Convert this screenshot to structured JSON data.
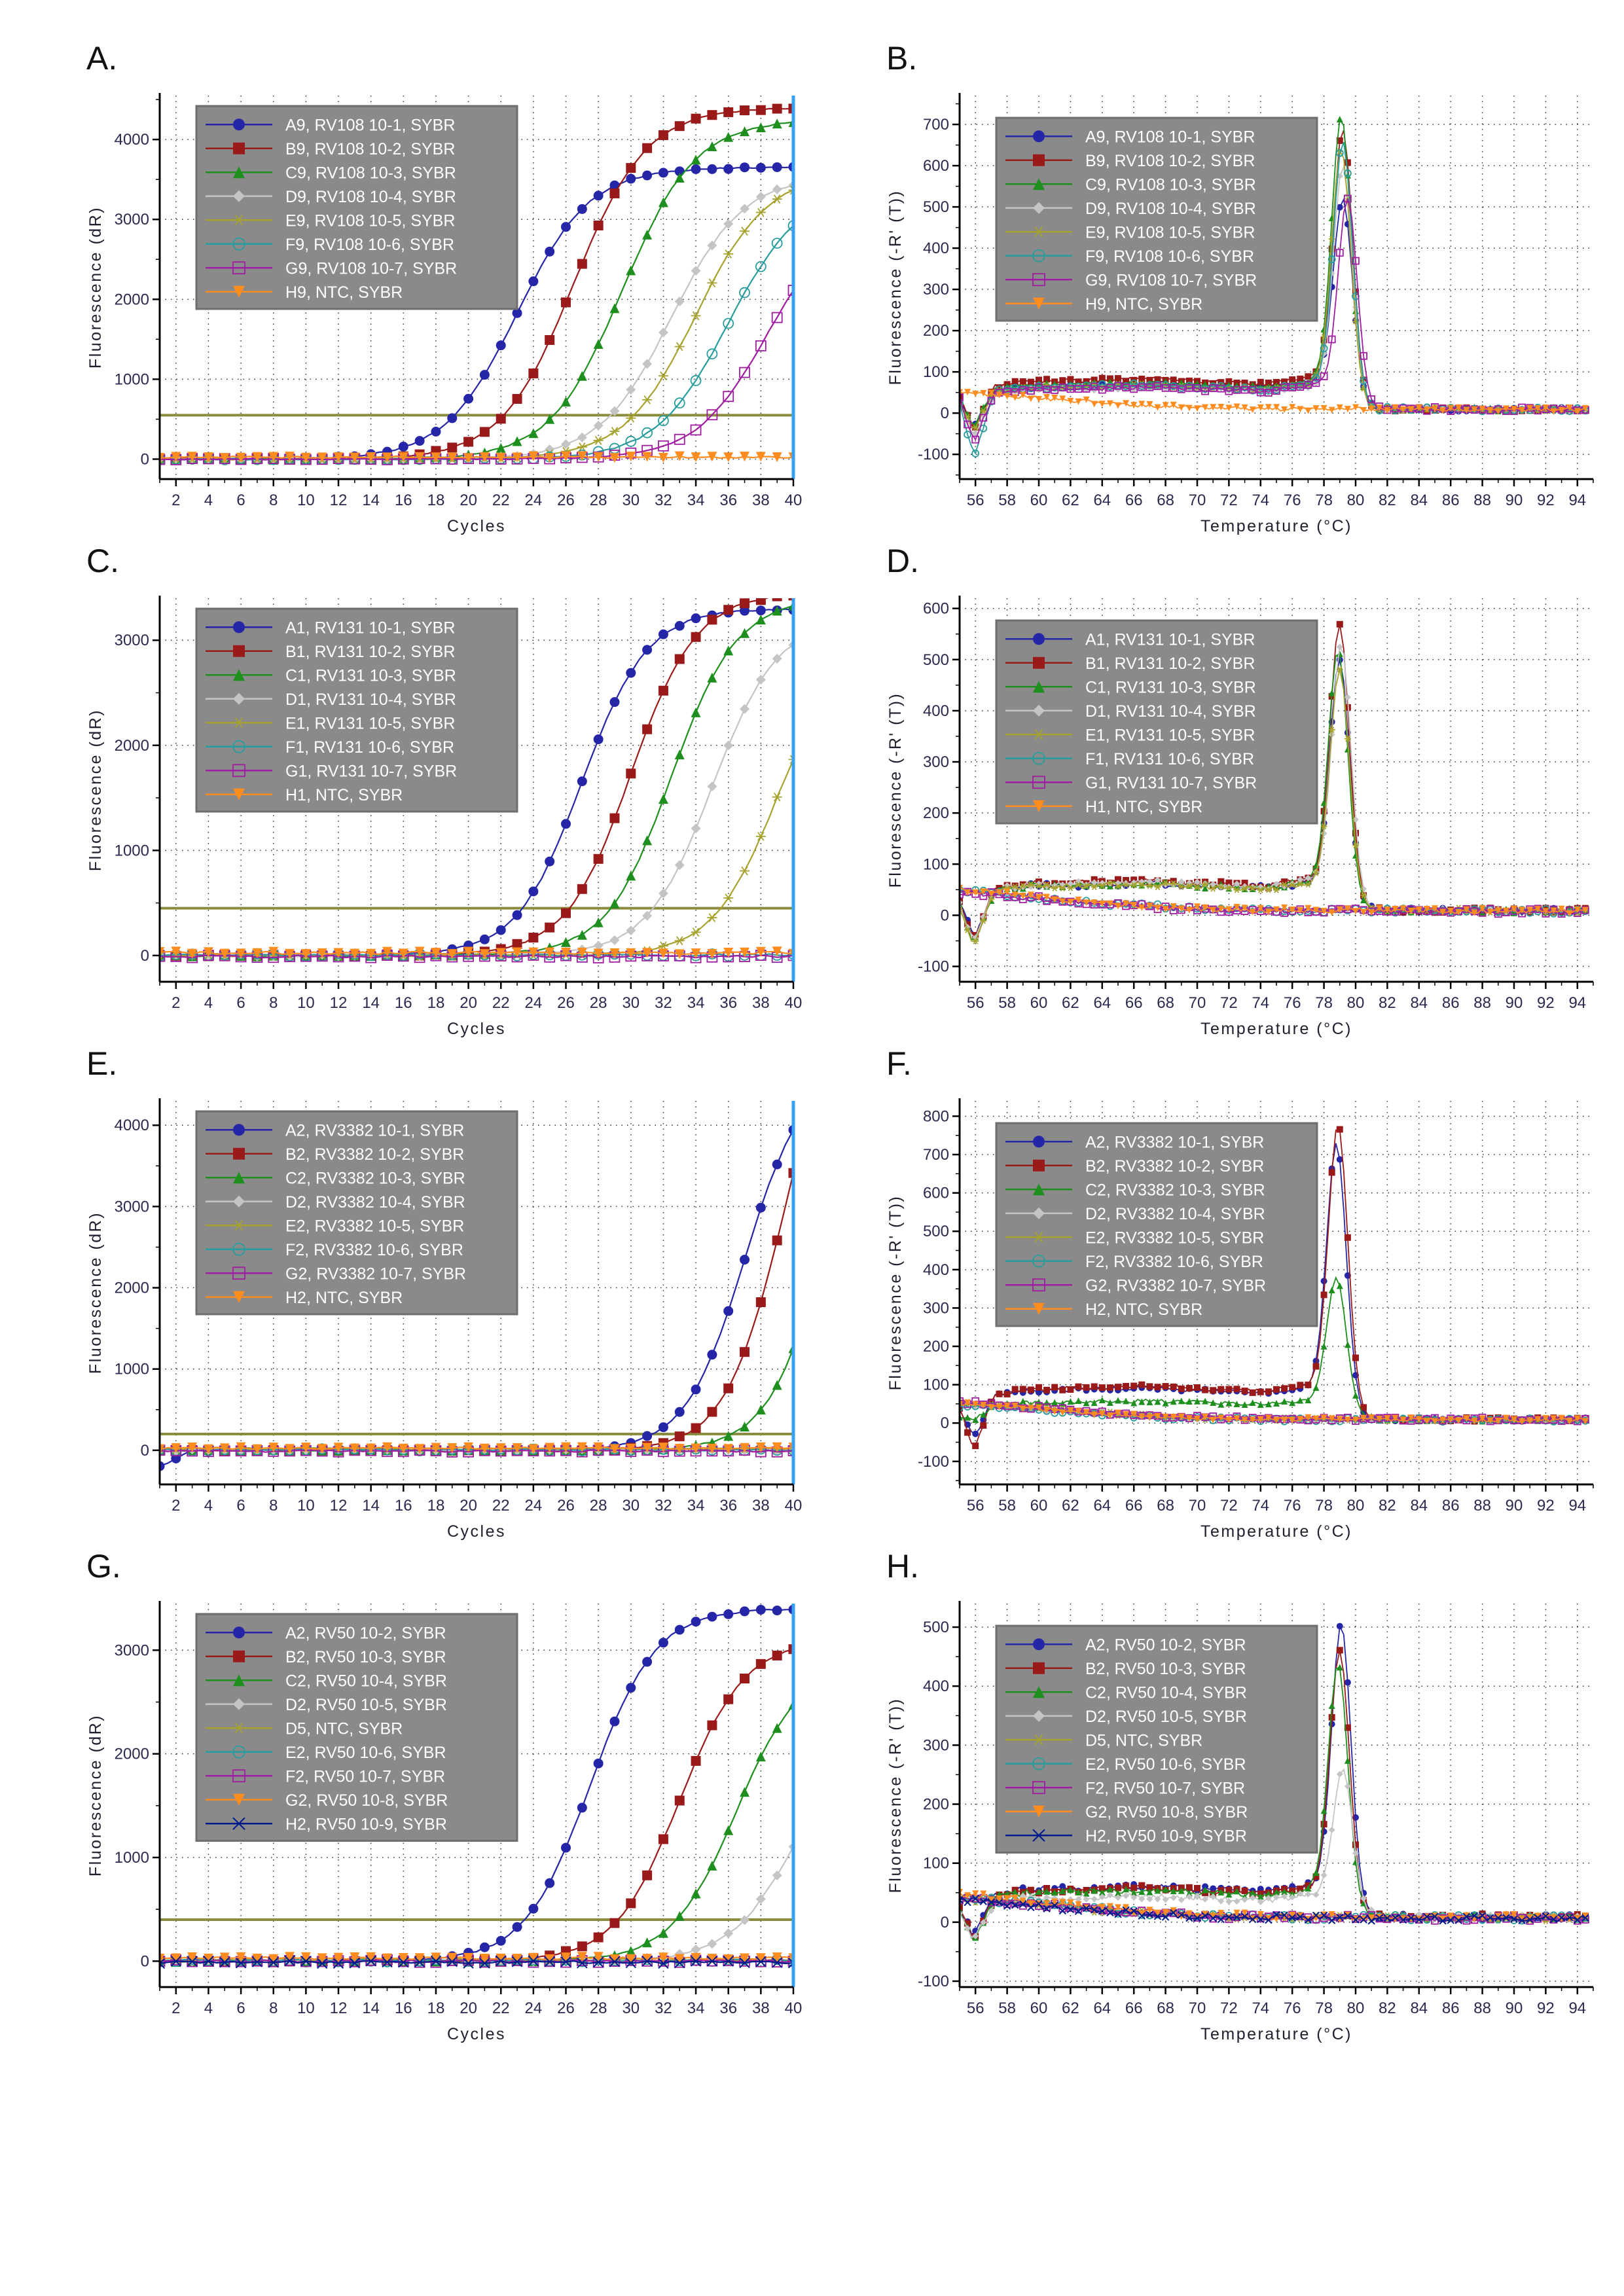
{
  "figure": {
    "panel_letters": [
      "A.",
      "B.",
      "C.",
      "D.",
      "E.",
      "F.",
      "G.",
      "H."
    ]
  },
  "colors": {
    "threshold": "#8b8b3d",
    "right_edge_line": "#36a0f5",
    "legend_bg": "#8a8a8a",
    "legend_border": "#6f6f6f",
    "axis": "#000000",
    "tick_text": "#2a2a4e"
  },
  "chart_data": [
    {
      "letter": "A.",
      "type": "line",
      "subtype": "amplification",
      "xlabel": "Cycles",
      "ylabel": "Fluorescence (dR)",
      "x_min": 1,
      "x_max": 40,
      "x_major": 2,
      "y_min": -250,
      "y_max": 4550,
      "y_ticks": [
        0,
        1000,
        2000,
        3000,
        4000
      ],
      "y_minor": 500,
      "threshold": 550,
      "k": 0.45,
      "series": [
        {
          "label": "A9, RV108 10-1, SYBR",
          "color": "#2525a8",
          "marker": "circle",
          "mid": 23.0,
          "plateau": 3650
        },
        {
          "label": "B9, RV108 10-2, SYBR",
          "color": "#9a1a1a",
          "marker": "square",
          "mid": 26.5,
          "plateau": 4400
        },
        {
          "label": "C9, RV108 10-3, SYBR",
          "color": "#1e8f1e",
          "marker": "triangle",
          "mid": 29.5,
          "plateau": 4250
        },
        {
          "label": "D9, RV108 10-4, SYBR",
          "color": "#c4c4c4",
          "marker": "diamond",
          "mid": 32.5,
          "plateau": 3550
        },
        {
          "label": "E9, RV108 10-5, SYBR",
          "color": "#a7a22e",
          "marker": "star",
          "mid": 34.0,
          "plateau": 3600
        },
        {
          "label": "F9, RV108 10-6, SYBR",
          "color": "#279c9c",
          "marker": "circle-open",
          "mid": 36.0,
          "plateau": 3400
        },
        {
          "label": "G9, RV108 10-7, SYBR",
          "color": "#a01ca0",
          "marker": "square-open",
          "mid": 38.5,
          "plateau": 3200
        },
        {
          "label": "H9, NTC, SYBR",
          "color": "#ff8c1f",
          "marker": "triangle-down",
          "flat": 25
        }
      ]
    },
    {
      "letter": "B.",
      "type": "line",
      "subtype": "melt",
      "xlabel": "Temperature (°C)",
      "ylabel": "Fluorescence (-R' (T))",
      "x_min": 55,
      "x_max": 95,
      "x_major": 2,
      "y_min": -160,
      "y_max": 770,
      "y_ticks": [
        -100,
        0,
        100,
        200,
        300,
        400,
        500,
        600,
        700
      ],
      "y_minor": 50,
      "series": [
        {
          "label": "A9, RV108 10-1, SYBR",
          "color": "#2525a8",
          "marker": "circle",
          "start": 30,
          "dip": -35,
          "shoulder": 70,
          "peak": 520,
          "tm": 79.2
        },
        {
          "label": "B9, RV108 10-2, SYBR",
          "color": "#9a1a1a",
          "marker": "square",
          "start": 40,
          "dip": -45,
          "shoulder": 80,
          "peak": 690,
          "tm": 79.2
        },
        {
          "label": "C9, RV108 10-3, SYBR",
          "color": "#1e8f1e",
          "marker": "triangle",
          "start": 25,
          "dip": -30,
          "shoulder": 70,
          "peak": 720,
          "tm": 79.1
        },
        {
          "label": "D9, RV108 10-4, SYBR",
          "color": "#c4c4c4",
          "marker": "diamond",
          "start": 20,
          "dip": -55,
          "shoulder": 60,
          "peak": 600,
          "tm": 79.2
        },
        {
          "label": "E9, RV108 10-5, SYBR",
          "color": "#a7a22e",
          "marker": "star",
          "start": 20,
          "dip": -40,
          "shoulder": 65,
          "peak": 640,
          "tm": 79.1
        },
        {
          "label": "F9, RV108 10-6, SYBR",
          "color": "#279c9c",
          "marker": "circle-open",
          "start": 25,
          "dip": -105,
          "shoulder": 65,
          "peak": 660,
          "tm": 79.2
        },
        {
          "label": "G9, RV108 10-7, SYBR",
          "color": "#a01ca0",
          "marker": "square-open",
          "start": 35,
          "dip": -70,
          "shoulder": 60,
          "peak": 520,
          "tm": 79.5
        },
        {
          "label": "H9, NTC, SYBR",
          "color": "#ff8c1f",
          "marker": "triangle-down",
          "flat": true,
          "start": 50
        }
      ]
    },
    {
      "letter": "C.",
      "type": "line",
      "subtype": "amplification",
      "xlabel": "Cycles",
      "ylabel": "Fluorescence (dR)",
      "x_min": 1,
      "x_max": 40,
      "x_major": 2,
      "y_min": -250,
      "y_max": 3400,
      "y_ticks": [
        0,
        1000,
        2000,
        3000
      ],
      "y_minor": 500,
      "threshold": 450,
      "k": 0.5,
      "series": [
        {
          "label": "A1, RV131 10-1, SYBR",
          "color": "#2525a8",
          "marker": "circle",
          "mid": 27.0,
          "plateau": 3300
        },
        {
          "label": "B1, RV131 10-2, SYBR",
          "color": "#9a1a1a",
          "marker": "square",
          "mid": 30.0,
          "plateau": 3450
        },
        {
          "label": "C1, RV131 10-3, SYBR",
          "color": "#1e8f1e",
          "marker": "triangle",
          "mid": 32.5,
          "plateau": 3400
        },
        {
          "label": "D1, RV131 10-4, SYBR",
          "color": "#c4c4c4",
          "marker": "diamond",
          "mid": 35.0,
          "plateau": 3200
        },
        {
          "label": "E1, RV131 10-5, SYBR",
          "color": "#a7a22e",
          "marker": "star",
          "mid": 39.0,
          "plateau": 3000
        },
        {
          "label": "F1, RV131 10-6, SYBR",
          "color": "#279c9c",
          "marker": "circle-open",
          "flat": 5
        },
        {
          "label": "G1, RV131 10-7, SYBR",
          "color": "#a01ca0",
          "marker": "square-open",
          "flat": -10
        },
        {
          "label": "H1, NTC, SYBR",
          "color": "#ff8c1f",
          "marker": "triangle-down",
          "flat": 25
        }
      ]
    },
    {
      "letter": "D.",
      "type": "line",
      "subtype": "melt",
      "xlabel": "Temperature (°C)",
      "ylabel": "Fluorescence (-R' (T))",
      "x_min": 55,
      "x_max": 95,
      "x_major": 2,
      "y_min": -130,
      "y_max": 620,
      "y_ticks": [
        -100,
        0,
        100,
        200,
        300,
        400,
        500,
        600
      ],
      "y_minor": 50,
      "series": [
        {
          "label": "A1, RV131 10-1, SYBR",
          "color": "#2525a8",
          "marker": "circle",
          "start": 25,
          "dip": -45,
          "shoulder": 60,
          "peak": 500,
          "tm": 79.0
        },
        {
          "label": "B1, RV131 10-2, SYBR",
          "color": "#9a1a1a",
          "marker": "square",
          "start": 30,
          "dip": -50,
          "shoulder": 65,
          "peak": 570,
          "tm": 79.0
        },
        {
          "label": "C1, RV131 10-3, SYBR",
          "color": "#1e8f1e",
          "marker": "triangle",
          "start": 20,
          "dip": -55,
          "shoulder": 60,
          "peak": 520,
          "tm": 78.9
        },
        {
          "label": "D1, RV131 10-4, SYBR",
          "color": "#c4c4c4",
          "marker": "diamond",
          "start": 20,
          "dip": -50,
          "shoulder": 62,
          "peak": 530,
          "tm": 79.1
        },
        {
          "label": "E1, RV131 10-5, SYBR",
          "color": "#a7a22e",
          "marker": "star",
          "start": 15,
          "dip": -60,
          "shoulder": 58,
          "peak": 480,
          "tm": 79.0
        },
        {
          "label": "F1, RV131 10-6, SYBR",
          "color": "#279c9c",
          "marker": "circle-open",
          "flat": true,
          "start": 48
        },
        {
          "label": "G1, RV131 10-7, SYBR",
          "color": "#a01ca0",
          "marker": "square-open",
          "flat": true,
          "start": 45
        },
        {
          "label": "H1, NTC, SYBR",
          "color": "#ff8c1f",
          "marker": "triangle-down",
          "flat": true,
          "start": 50
        }
      ]
    },
    {
      "letter": "E.",
      "type": "line",
      "subtype": "amplification",
      "xlabel": "Cycles",
      "ylabel": "Fluorescence (dR)",
      "x_min": 1,
      "x_max": 40,
      "x_major": 2,
      "y_min": -420,
      "y_max": 4300,
      "y_ticks": [
        0,
        1000,
        2000,
        3000,
        4000
      ],
      "y_minor": 500,
      "threshold": 200,
      "k": 0.55,
      "series": [
        {
          "label": "A2, RV3382 10-1, SYBR",
          "color": "#2525a8",
          "marker": "circle",
          "mid": 37.0,
          "plateau": 4700,
          "dip0": -200
        },
        {
          "label": "B2, RV3382 10-2, SYBR",
          "color": "#9a1a1a",
          "marker": "square",
          "mid": 39.5,
          "plateau": 6000
        },
        {
          "label": "C2, RV3382 10-3, SYBR",
          "color": "#1e8f1e",
          "marker": "triangle",
          "mid": 42.0,
          "plateau": 5000
        },
        {
          "label": "D2, RV3382 10-4, SYBR",
          "color": "#c4c4c4",
          "marker": "diamond",
          "flat": 0
        },
        {
          "label": "E2, RV3382 10-5, SYBR",
          "color": "#a7a22e",
          "marker": "star",
          "flat": 20
        },
        {
          "label": "F2, RV3382 10-6, SYBR",
          "color": "#279c9c",
          "marker": "circle-open",
          "flat": 5
        },
        {
          "label": "G2, RV3382 10-7, SYBR",
          "color": "#a01ca0",
          "marker": "square-open",
          "flat": -10
        },
        {
          "label": "H2, NTC, SYBR",
          "color": "#ff8c1f",
          "marker": "triangle-down",
          "flat": 25
        }
      ]
    },
    {
      "letter": "F.",
      "type": "line",
      "subtype": "melt",
      "xlabel": "Temperature (°C)",
      "ylabel": "Fluorescence (-R' (T))",
      "x_min": 55,
      "x_max": 95,
      "x_major": 2,
      "y_min": -160,
      "y_max": 840,
      "y_ticks": [
        -100,
        0,
        100,
        200,
        300,
        400,
        500,
        600,
        700,
        800
      ],
      "y_minor": 50,
      "series": [
        {
          "label": "A2, RV3382 10-1, SYBR",
          "color": "#2525a8",
          "marker": "circle",
          "start": 35,
          "dip": -40,
          "shoulder": 88,
          "peak": 730,
          "tm": 78.8
        },
        {
          "label": "B2, RV3382 10-2, SYBR",
          "color": "#9a1a1a",
          "marker": "square",
          "start": 40,
          "dip": -70,
          "shoulder": 92,
          "peak": 780,
          "tm": 78.9
        },
        {
          "label": "C2, RV3382 10-3, SYBR",
          "color": "#1e8f1e",
          "marker": "triangle",
          "start": 15,
          "dip": 8,
          "shoulder": 55,
          "peak": 380,
          "tm": 78.8
        },
        {
          "label": "D2, RV3382 10-4, SYBR",
          "color": "#c4c4c4",
          "marker": "diamond",
          "flat": true,
          "start": 50
        },
        {
          "label": "E2, RV3382 10-5, SYBR",
          "color": "#a7a22e",
          "marker": "star",
          "flat": true,
          "start": 52
        },
        {
          "label": "F2, RV3382 10-6, SYBR",
          "color": "#279c9c",
          "marker": "circle-open",
          "flat": true,
          "start": 45
        },
        {
          "label": "G2, RV3382 10-7, SYBR",
          "color": "#a01ca0",
          "marker": "square-open",
          "flat": true,
          "start": 55
        },
        {
          "label": "H2, NTC, SYBR",
          "color": "#ff8c1f",
          "marker": "triangle-down",
          "flat": true,
          "start": 50
        }
      ]
    },
    {
      "letter": "G.",
      "type": "line",
      "subtype": "amplification",
      "xlabel": "Cycles",
      "ylabel": "Fluorescence (dR)",
      "x_min": 1,
      "x_max": 40,
      "x_major": 2,
      "y_min": -250,
      "y_max": 3450,
      "y_ticks": [
        0,
        1000,
        2000,
        3000
      ],
      "y_minor": 500,
      "threshold": 400,
      "k": 0.5,
      "series": [
        {
          "label": "A2, RV50 10-2, SYBR",
          "color": "#2525a8",
          "marker": "circle",
          "mid": 27.5,
          "plateau": 3400
        },
        {
          "label": "B2, RV50 10-3, SYBR",
          "color": "#9a1a1a",
          "marker": "square",
          "mid": 33.0,
          "plateau": 3100
        },
        {
          "label": "C2, RV50 10-4, SYBR",
          "color": "#1e8f1e",
          "marker": "triangle",
          "mid": 36.5,
          "plateau": 2900
        },
        {
          "label": "D2, RV50 10-5, SYBR",
          "color": "#c4c4c4",
          "marker": "diamond",
          "mid": 40.0,
          "plateau": 2200
        },
        {
          "label": "D5, NTC, SYBR",
          "color": "#a7a22e",
          "marker": "star",
          "flat": 15
        },
        {
          "label": "E2, RV50 10-6, SYBR",
          "color": "#279c9c",
          "marker": "circle-open",
          "flat": 5
        },
        {
          "label": "F2, RV50 10-7, SYBR",
          "color": "#a01ca0",
          "marker": "square-open",
          "flat": 0
        },
        {
          "label": "G2, RV50 10-8, SYBR",
          "color": "#ff8c1f",
          "marker": "triangle-down",
          "flat": 30
        },
        {
          "label": "H2, RV50 10-9, SYBR",
          "color": "#001a8c",
          "marker": "x",
          "flat": -10
        }
      ]
    },
    {
      "letter": "H.",
      "type": "line",
      "subtype": "melt",
      "xlabel": "Temperature (°C)",
      "ylabel": "Fluorescence (-R' (T))",
      "x_min": 55,
      "x_max": 95,
      "x_major": 2,
      "y_min": -110,
      "y_max": 540,
      "y_ticks": [
        -100,
        0,
        100,
        200,
        300,
        400,
        500
      ],
      "y_minor": 50,
      "series": [
        {
          "label": "A2, RV50 10-2, SYBR",
          "color": "#2525a8",
          "marker": "circle",
          "start": 25,
          "dip": -25,
          "shoulder": 58,
          "peak": 505,
          "tm": 79.1
        },
        {
          "label": "B2, RV50 10-3, SYBR",
          "color": "#9a1a1a",
          "marker": "square",
          "start": 22,
          "dip": -30,
          "shoulder": 55,
          "peak": 460,
          "tm": 79.0
        },
        {
          "label": "C2, RV50 10-4, SYBR",
          "color": "#1e8f1e",
          "marker": "triangle",
          "start": 18,
          "dip": -35,
          "shoulder": 52,
          "peak": 440,
          "tm": 78.9
        },
        {
          "label": "D2, RV50 10-5, SYBR",
          "color": "#c4c4c4",
          "marker": "diamond",
          "start": 12,
          "dip": -30,
          "shoulder": 42,
          "peak": 260,
          "tm": 79.2
        },
        {
          "label": "D5, NTC, SYBR",
          "color": "#a7a22e",
          "marker": "star",
          "flat": true,
          "start": 40
        },
        {
          "label": "E2, RV50 10-6, SYBR",
          "color": "#279c9c",
          "marker": "circle-open",
          "flat": true,
          "start": 42
        },
        {
          "label": "F2, RV50 10-7, SYBR",
          "color": "#a01ca0",
          "marker": "square-open",
          "flat": true,
          "start": 40
        },
        {
          "label": "G2, RV50 10-8, SYBR",
          "color": "#ff8c1f",
          "marker": "triangle-down",
          "flat": true,
          "start": 48
        },
        {
          "label": "H2, RV50 10-9, SYBR",
          "color": "#001a8c",
          "marker": "x",
          "flat": true,
          "start": 38
        }
      ]
    }
  ]
}
